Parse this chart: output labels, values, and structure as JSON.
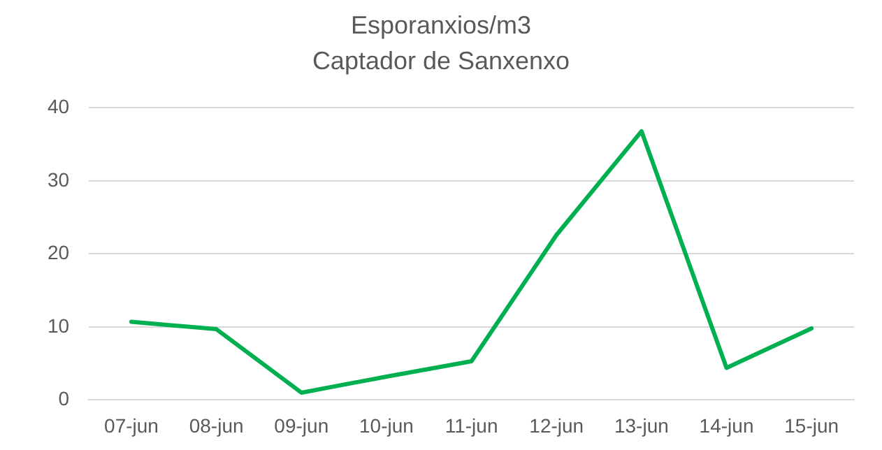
{
  "chart_data": {
    "type": "line",
    "title": "Esporanxios/m3",
    "subtitle": "Captador de Sanxenxo",
    "categories": [
      "07-jun",
      "08-jun",
      "09-jun",
      "10-jun",
      "11-jun",
      "12-jun",
      "13-jun",
      "14-jun",
      "15-jun"
    ],
    "series": [
      {
        "color": "#00b050",
        "values": [
          10.7,
          9.7,
          1,
          3.2,
          5.3,
          22.6,
          36.8,
          4.4,
          9.8
        ]
      }
    ],
    "ylim": [
      0,
      40
    ],
    "yticks": [
      0,
      10,
      20,
      30,
      40
    ],
    "grid": "y",
    "legend": false,
    "marker": "none",
    "line_style": "solid"
  }
}
